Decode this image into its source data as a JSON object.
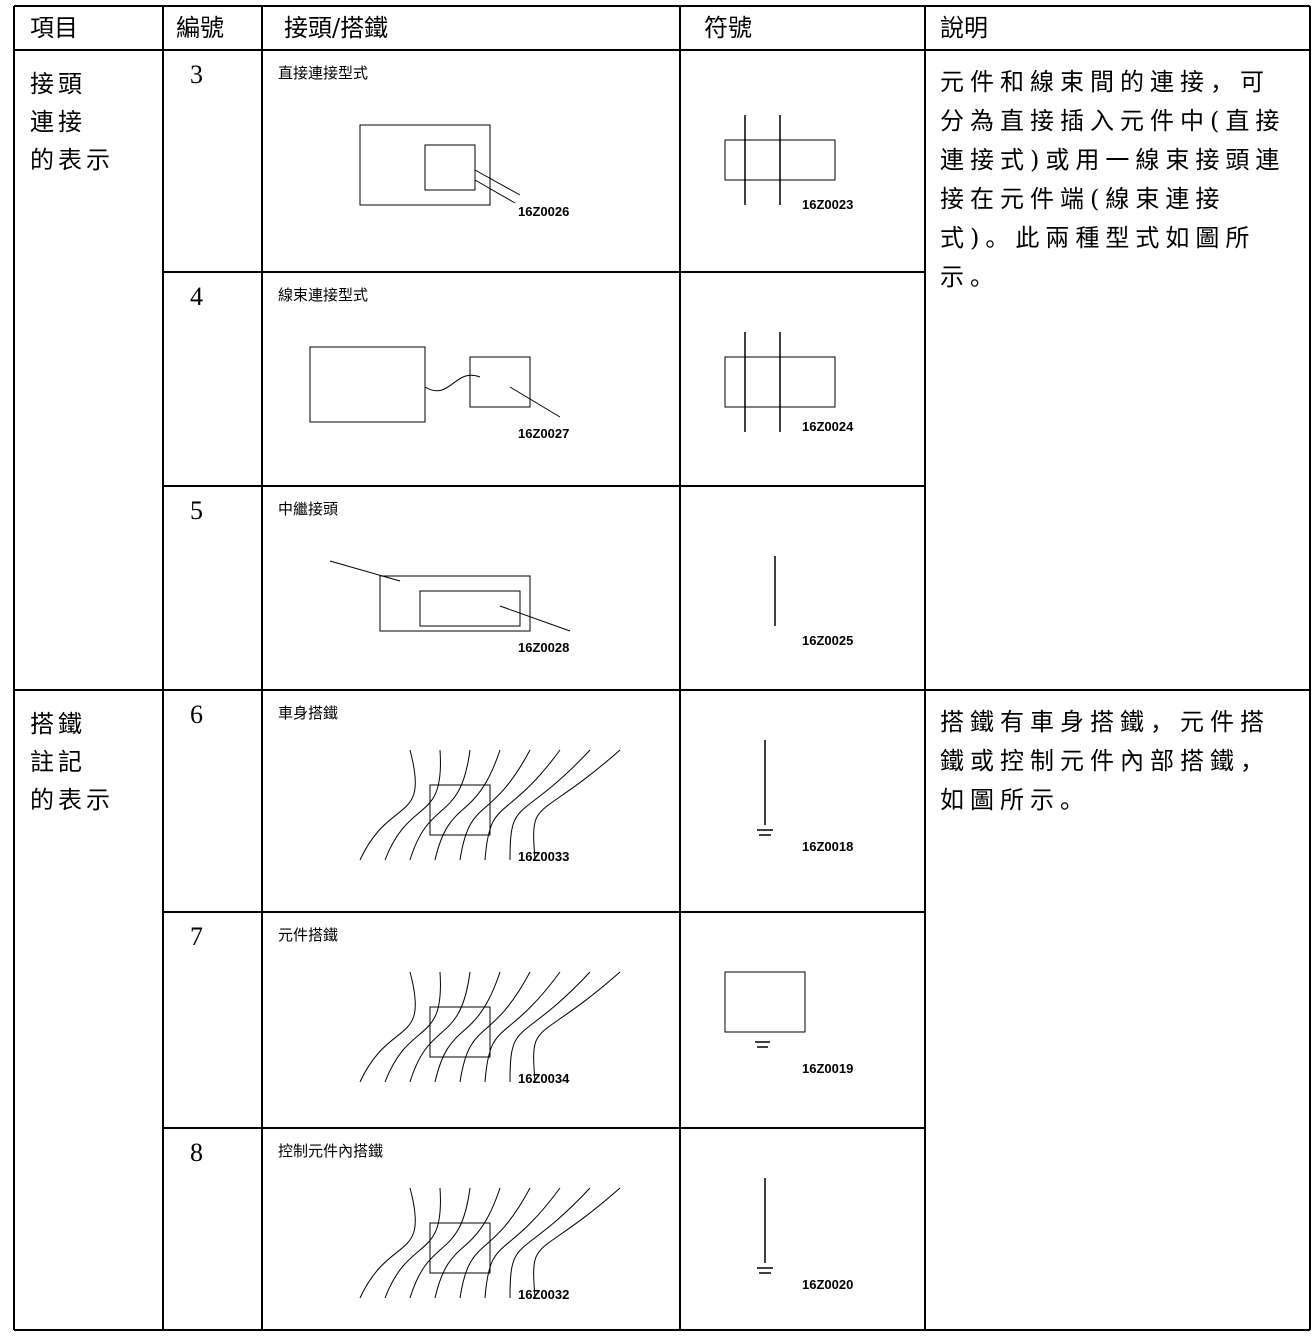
{
  "header": [
    "項目",
    "編號",
    "接頭/搭鐵",
    "符號",
    "說明"
  ],
  "groups": [
    {
      "item": [
        "接頭",
        "連接",
        "的表示"
      ],
      "description": [
        "元件和線束間的連接，可",
        "分為直接插入元件中(直接",
        "連接式)或用一線束接頭連",
        "接在元件端(線束連接",
        "式)。此兩種型式如圖所",
        "示。"
      ],
      "rows": [
        {
          "number": "3",
          "caption": "直接連接型式",
          "figure_code": "16Z0026",
          "symbol_code": "16Z0023"
        },
        {
          "number": "4",
          "caption": "線束連接型式",
          "figure_code": "16Z0027",
          "symbol_code": "16Z0024"
        },
        {
          "number": "5",
          "caption": "中繼接頭",
          "figure_code": "16Z0028",
          "symbol_code": "16Z0025"
        }
      ]
    },
    {
      "item": [
        "搭鐵",
        "註記",
        "的表示"
      ],
      "description": [
        "搭鐵有車身搭鐵，元件搭",
        "鐵或控制元件內部搭鐵，",
        "如圖所示。"
      ],
      "rows": [
        {
          "number": "6",
          "caption": "車身搭鐵",
          "figure_code": "16Z0033",
          "symbol_code": "16Z0018"
        },
        {
          "number": "7",
          "caption": "元件搭鐵",
          "figure_code": "16Z0034",
          "symbol_code": "16Z0019"
        },
        {
          "number": "8",
          "caption": "控制元件內搭鐵",
          "figure_code": "16Z0032",
          "symbol_code": "16Z0020"
        }
      ]
    }
  ]
}
